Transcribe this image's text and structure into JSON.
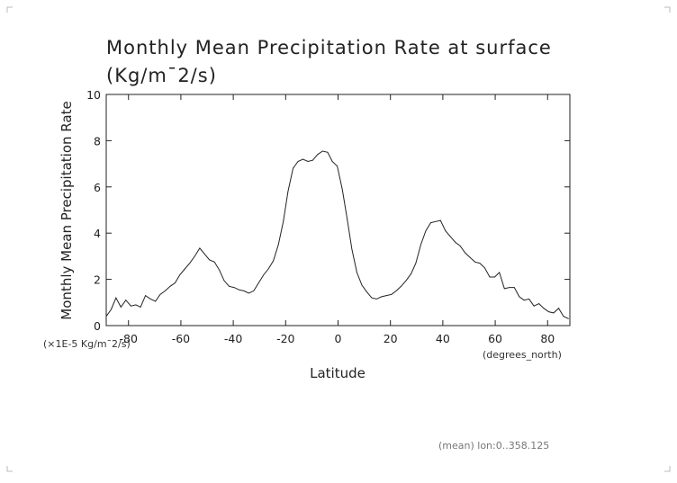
{
  "chart_data": {
    "type": "line",
    "title": "Monthly Mean Precipitation Rate at surface",
    "subtitle": "(Kg/m¯2/s)",
    "ylabel": "Monthly Mean Precipitation Rate",
    "yunit": "(×1E-5 Kg/m¯2/s)",
    "xlabel": "Latitude",
    "xunit": "(degrees_north)",
    "footer": "(mean) lon:0..358.125",
    "xlim": [
      -88.5,
      88.5
    ],
    "ylim": [
      0,
      10
    ],
    "xticks": [
      -80,
      -60,
      -40,
      -20,
      0,
      20,
      40,
      60,
      80
    ],
    "yticks": [
      0,
      2,
      4,
      6,
      8,
      10
    ],
    "xticklabels": [
      "-80",
      "-60",
      "-40",
      "-20",
      "0",
      "20",
      "40",
      "60",
      "80"
    ],
    "yticklabels": [
      "0",
      "2",
      "4",
      "6",
      "8",
      "10"
    ],
    "series": [
      {
        "x": [
          -88.5,
          -86.6,
          -84.8,
          -82.9,
          -81.0,
          -79.1,
          -77.2,
          -75.4,
          -73.5,
          -71.6,
          -69.7,
          -67.9,
          -66.0,
          -64.1,
          -62.2,
          -60.4,
          -58.5,
          -56.6,
          -54.7,
          -52.8,
          -51.0,
          -49.1,
          -47.2,
          -45.3,
          -43.5,
          -41.6,
          -39.7,
          -37.8,
          -35.9,
          -34.1,
          -32.2,
          -30.3,
          -28.4,
          -26.6,
          -24.7,
          -22.8,
          -20.9,
          -19.1,
          -17.2,
          -15.3,
          -13.4,
          -11.5,
          -9.7,
          -7.8,
          -5.9,
          -4.0,
          -2.2,
          -0.3,
          1.6,
          3.5,
          5.3,
          7.2,
          9.1,
          11.0,
          12.9,
          14.7,
          16.6,
          18.5,
          20.4,
          22.2,
          24.1,
          26.0,
          27.9,
          29.7,
          31.6,
          33.5,
          35.4,
          37.3,
          39.1,
          41.0,
          42.9,
          44.8,
          46.6,
          48.5,
          50.4,
          52.3,
          54.1,
          56.0,
          57.9,
          59.8,
          61.6,
          63.5,
          65.4,
          67.3,
          69.2,
          71.0,
          72.9,
          74.8,
          76.7,
          78.5,
          80.4,
          82.3,
          84.2,
          86.1,
          88.0
        ],
        "y": [
          0.4,
          0.7,
          1.2,
          0.8,
          1.1,
          0.85,
          0.9,
          0.8,
          1.3,
          1.15,
          1.05,
          1.35,
          1.5,
          1.7,
          1.85,
          2.2,
          2.45,
          2.7,
          3.0,
          3.35,
          3.1,
          2.85,
          2.75,
          2.4,
          1.95,
          1.7,
          1.65,
          1.55,
          1.5,
          1.4,
          1.5,
          1.85,
          2.2,
          2.45,
          2.8,
          3.5,
          4.5,
          5.8,
          6.8,
          7.1,
          7.2,
          7.1,
          7.15,
          7.4,
          7.55,
          7.5,
          7.1,
          6.9,
          5.9,
          4.6,
          3.3,
          2.3,
          1.75,
          1.45,
          1.2,
          1.15,
          1.25,
          1.3,
          1.35,
          1.5,
          1.7,
          1.95,
          2.25,
          2.7,
          3.5,
          4.1,
          4.45,
          4.5,
          4.55,
          4.1,
          3.85,
          3.6,
          3.45,
          3.15,
          2.95,
          2.75,
          2.7,
          2.5,
          2.1,
          2.1,
          2.3,
          1.6,
          1.65,
          1.65,
          1.25,
          1.1,
          1.15,
          0.85,
          0.95,
          0.75,
          0.6,
          0.55,
          0.75,
          0.4,
          0.3
        ]
      }
    ],
    "grid": false
  }
}
